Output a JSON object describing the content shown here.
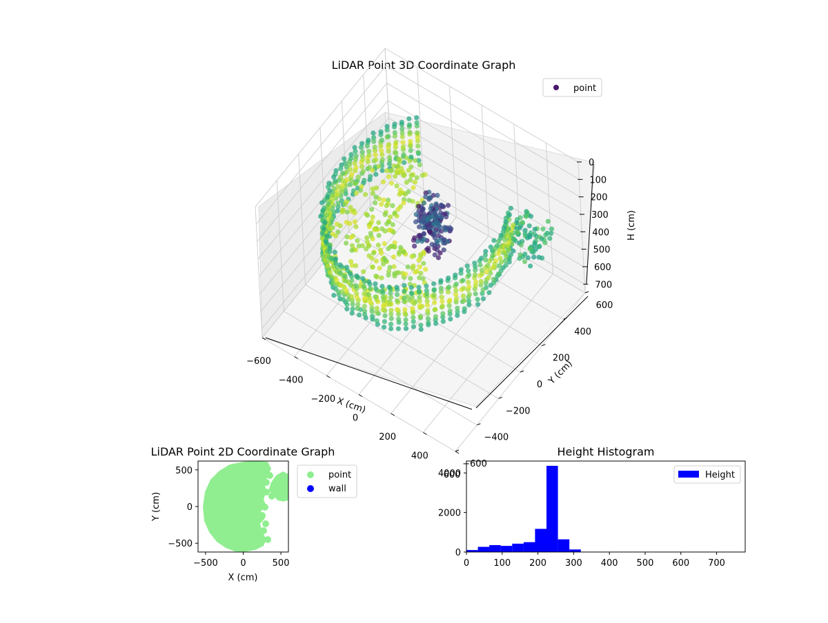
{
  "chart_data": [
    {
      "type": "scatter3d",
      "title": "LiDAR Point 3D Coordinate Graph",
      "xlabel": "X (cm)",
      "ylabel": "Y (cm)",
      "zlabel": "H (cm)",
      "xticks": [
        -600,
        -400,
        -200,
        0,
        200,
        400,
        600
      ],
      "yticks": [
        -600,
        -400,
        -200,
        0,
        200,
        400,
        600
      ],
      "zticks": [
        0,
        100,
        200,
        300,
        400,
        500,
        600,
        700
      ],
      "xlim": [
        -600,
        600
      ],
      "ylim": [
        -600,
        600
      ],
      "zlim": [
        750,
        0
      ],
      "colormap": "viridis",
      "legend": {
        "label": "point",
        "color": "#48186a",
        "position": "top-right"
      },
      "point_shape": "partial-cylinder; radius about 560, height 100 to 330, center cluster near 0,0"
    },
    {
      "type": "scatter",
      "title": "LiDAR Point 2D Coordinate Graph",
      "xlabel": "X (cm)",
      "ylabel": "Y (cm)",
      "xticks": [
        -500,
        0,
        500
      ],
      "yticks": [
        -500,
        0,
        500
      ],
      "xlim": [
        -600,
        600
      ],
      "ylim": [
        -620,
        620
      ],
      "series": [
        {
          "name": "point",
          "color": "#90ee90"
        },
        {
          "name": "wall",
          "color": "#0000ff"
        }
      ],
      "legend_position": "outside-right"
    },
    {
      "type": "bar",
      "title": "Height Histogram",
      "xlabel": "",
      "ylabel": "",
      "xticks": [
        0,
        100,
        200,
        300,
        400,
        500,
        600,
        700
      ],
      "yticks": [
        0,
        2000,
        4000
      ],
      "xlim": [
        0,
        780
      ],
      "ylim": [
        0,
        4600
      ],
      "bin_width": 32,
      "bin_starts": [
        0,
        32,
        64,
        96,
        128,
        160,
        192,
        224,
        256,
        288
      ],
      "values": [
        100,
        260,
        350,
        310,
        420,
        500,
        1170,
        4360,
        640,
        130
      ],
      "series_name": "Height",
      "color": "#0000ff",
      "legend_position": "top-right"
    }
  ]
}
